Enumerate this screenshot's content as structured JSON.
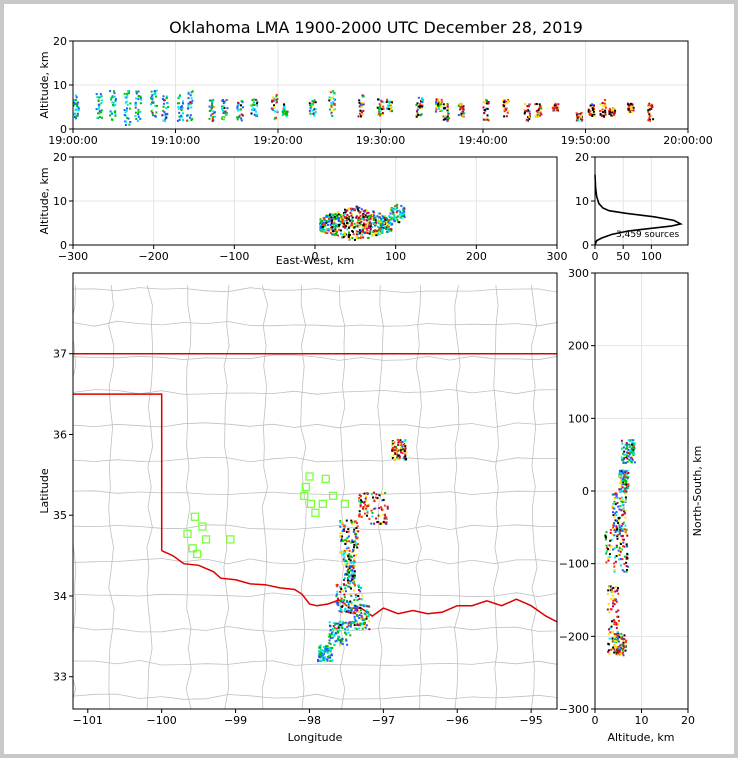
{
  "figure": {
    "title": "Oklahoma LMA 1900-2000 UTC December 28, 2019"
  },
  "chart_data": [
    {
      "panel": "time-height",
      "type": "scatter",
      "ylabel": "Altitude, km",
      "xlim_minutes": [
        0,
        60
      ],
      "ylim": [
        0,
        20
      ],
      "x_ticks": [
        "19:00:00",
        "19:10:00",
        "19:20:00",
        "19:30:00",
        "19:40:00",
        "19:50:00",
        "20:00:00"
      ],
      "y_ticks": [
        "0",
        "10",
        "20"
      ],
      "grid": true,
      "color_by": "time",
      "clusters": [
        {
          "t": 0.2,
          "alt": [
            2,
            8
          ]
        },
        {
          "t": 2.5,
          "alt": [
            2,
            10
          ]
        },
        {
          "t": 3.8,
          "alt": [
            2,
            9
          ]
        },
        {
          "t": 5.2,
          "alt": [
            1,
            9
          ]
        },
        {
          "t": 6.3,
          "alt": [
            2,
            9
          ]
        },
        {
          "t": 7.8,
          "alt": [
            2,
            9
          ]
        },
        {
          "t": 8.9,
          "alt": [
            2,
            8
          ]
        },
        {
          "t": 10.4,
          "alt": [
            2,
            8
          ]
        },
        {
          "t": 11.3,
          "alt": [
            2,
            9
          ]
        },
        {
          "t": 13.5,
          "alt": [
            2,
            7
          ]
        },
        {
          "t": 14.7,
          "alt": [
            2,
            7
          ]
        },
        {
          "t": 16.2,
          "alt": [
            2,
            7
          ]
        },
        {
          "t": 17.6,
          "alt": [
            3,
            7
          ]
        },
        {
          "t": 19.6,
          "alt": [
            2,
            8
          ]
        },
        {
          "t": 20.6,
          "alt": [
            3,
            6
          ]
        },
        {
          "t": 23.3,
          "alt": [
            3,
            7
          ]
        },
        {
          "t": 25.2,
          "alt": [
            3,
            9
          ]
        },
        {
          "t": 28.0,
          "alt": [
            3,
            8
          ]
        },
        {
          "t": 29.9,
          "alt": [
            3,
            7
          ]
        },
        {
          "t": 30.8,
          "alt": [
            4,
            7
          ]
        },
        {
          "t": 33.7,
          "alt": [
            3,
            8
          ]
        },
        {
          "t": 35.6,
          "alt": [
            4,
            7
          ]
        },
        {
          "t": 36.3,
          "alt": [
            2,
            6
          ]
        },
        {
          "t": 37.8,
          "alt": [
            3,
            6
          ]
        },
        {
          "t": 40.2,
          "alt": [
            2,
            7
          ]
        },
        {
          "t": 42.1,
          "alt": [
            3,
            7
          ]
        },
        {
          "t": 44.2,
          "alt": [
            2,
            6
          ]
        },
        {
          "t": 45.3,
          "alt": [
            3,
            6
          ]
        },
        {
          "t": 47.0,
          "alt": [
            4,
            6
          ]
        },
        {
          "t": 49.3,
          "alt": [
            2,
            4
          ]
        },
        {
          "t": 50.5,
          "alt": [
            3,
            6
          ]
        },
        {
          "t": 51.6,
          "alt": [
            3,
            7
          ]
        },
        {
          "t": 52.5,
          "alt": [
            3,
            5
          ]
        },
        {
          "t": 54.3,
          "alt": [
            4,
            6
          ]
        },
        {
          "t": 56.3,
          "alt": [
            2,
            6
          ]
        }
      ]
    },
    {
      "panel": "east-west-altitude",
      "type": "scatter",
      "xlabel": "East-West, km",
      "ylabel": "Altitude, km",
      "xlim": [
        -300,
        300
      ],
      "ylim": [
        0,
        20
      ],
      "x_ticks": [
        "−300",
        "−200",
        "−100",
        "0",
        "100",
        "200",
        "300"
      ],
      "y_ticks": [
        "0",
        "10",
        "20"
      ],
      "grid": true,
      "color_by": "time",
      "clusters": [
        {
          "x": [
            5,
            95
          ],
          "alt": [
            1,
            9
          ]
        },
        {
          "x": [
            92,
            110
          ],
          "alt": [
            5,
            10
          ]
        }
      ]
    },
    {
      "panel": "altitude-histogram",
      "type": "line",
      "xlim": [
        0,
        165
      ],
      "ylim": [
        0,
        20
      ],
      "x_ticks": [
        "0",
        "50",
        "100"
      ],
      "y_ticks": [
        "0",
        "10",
        "20"
      ],
      "annotation": "3,459 sources",
      "curve": [
        {
          "count": 0,
          "alt": 0
        },
        {
          "count": 3,
          "alt": 1
        },
        {
          "count": 12,
          "alt": 1.6
        },
        {
          "count": 30,
          "alt": 2.4
        },
        {
          "count": 60,
          "alt": 3.2
        },
        {
          "count": 100,
          "alt": 3.8
        },
        {
          "count": 135,
          "alt": 4.3
        },
        {
          "count": 152,
          "alt": 4.8
        },
        {
          "count": 140,
          "alt": 5.6
        },
        {
          "count": 105,
          "alt": 6.4
        },
        {
          "count": 55,
          "alt": 7.2
        },
        {
          "count": 25,
          "alt": 7.8
        },
        {
          "count": 14,
          "alt": 8.4
        },
        {
          "count": 7,
          "alt": 9.4
        },
        {
          "count": 3,
          "alt": 11
        },
        {
          "count": 1,
          "alt": 13
        },
        {
          "count": 0,
          "alt": 16
        }
      ]
    },
    {
      "panel": "plan-view",
      "type": "scatter",
      "xlabel": "Longitude",
      "ylabel": "Latitude",
      "xlim": [
        -101.2,
        -94.65
      ],
      "ylim": [
        32.6,
        38.0
      ],
      "x_ticks": [
        "−101",
        "−100",
        "−99",
        "−98",
        "−97",
        "−96",
        "−95"
      ],
      "y_ticks": [
        "33",
        "34",
        "35",
        "36",
        "37"
      ],
      "border_color": "#dd0000",
      "county_color": "#c0c0c0",
      "station_color": "#7aff3c",
      "stations": [
        {
          "lon": -99.55,
          "lat": 34.98
        },
        {
          "lon": -99.45,
          "lat": 34.86
        },
        {
          "lon": -99.65,
          "lat": 34.77
        },
        {
          "lon": -99.4,
          "lat": 34.7
        },
        {
          "lon": -99.58,
          "lat": 34.59
        },
        {
          "lon": -99.52,
          "lat": 34.52
        },
        {
          "lon": -99.07,
          "lat": 34.7
        },
        {
          "lon": -98.0,
          "lat": 35.48
        },
        {
          "lon": -98.05,
          "lat": 35.35
        },
        {
          "lon": -98.07,
          "lat": 35.24
        },
        {
          "lon": -97.98,
          "lat": 35.14
        },
        {
          "lon": -97.92,
          "lat": 35.03
        },
        {
          "lon": -97.82,
          "lat": 35.14
        },
        {
          "lon": -97.78,
          "lat": 35.45
        },
        {
          "lon": -97.68,
          "lat": 35.24
        },
        {
          "lon": -97.52,
          "lat": 35.14
        }
      ],
      "clusters": [
        {
          "lon": [
            -97.9,
            -97.7
          ],
          "lat": [
            33.2,
            33.4
          ]
        },
        {
          "lon": [
            -97.75,
            -97.45
          ],
          "lat": [
            33.4,
            33.7
          ]
        },
        {
          "lon": [
            -97.5,
            -97.2
          ],
          "lat": [
            33.6,
            33.9
          ]
        },
        {
          "lon": [
            -97.65,
            -97.3
          ],
          "lat": [
            33.8,
            34.15
          ]
        },
        {
          "lon": [
            -97.55,
            -97.4
          ],
          "lat": [
            34.15,
            34.5
          ]
        },
        {
          "lon": [
            -97.6,
            -97.35
          ],
          "lat": [
            34.5,
            34.95
          ]
        },
        {
          "lon": [
            -97.35,
            -96.95
          ],
          "lat": [
            34.9,
            35.3
          ]
        },
        {
          "lon": [
            -96.9,
            -96.7
          ],
          "lat": [
            35.7,
            35.95
          ]
        }
      ]
    },
    {
      "panel": "altitude-north-south",
      "type": "scatter",
      "xlabel": "Altitude, km",
      "ylabel": "North-South, km",
      "xlim": [
        0,
        20
      ],
      "ylim": [
        -300,
        300
      ],
      "x_ticks": [
        "0",
        "10",
        "20"
      ],
      "y_ticks": [
        "−300",
        "−200",
        "−100",
        "0",
        "100",
        "200",
        "300"
      ],
      "grid": true,
      "color_by": "time",
      "clusters": [
        {
          "alt": [
            2.5,
            5.0
          ],
          "ns": [
            -225,
            -130
          ]
        },
        {
          "alt": [
            4.0,
            6.5
          ],
          "ns": [
            -225,
            -195
          ]
        },
        {
          "alt": [
            2.0,
            7.0
          ],
          "ns": [
            -110,
            -50
          ]
        },
        {
          "alt": [
            3.5,
            6.5
          ],
          "ns": [
            -60,
            0
          ]
        },
        {
          "alt": [
            5.0,
            7.0
          ],
          "ns": [
            0,
            30
          ]
        },
        {
          "alt": [
            5.5,
            8.5
          ],
          "ns": [
            40,
            75
          ]
        }
      ]
    }
  ]
}
